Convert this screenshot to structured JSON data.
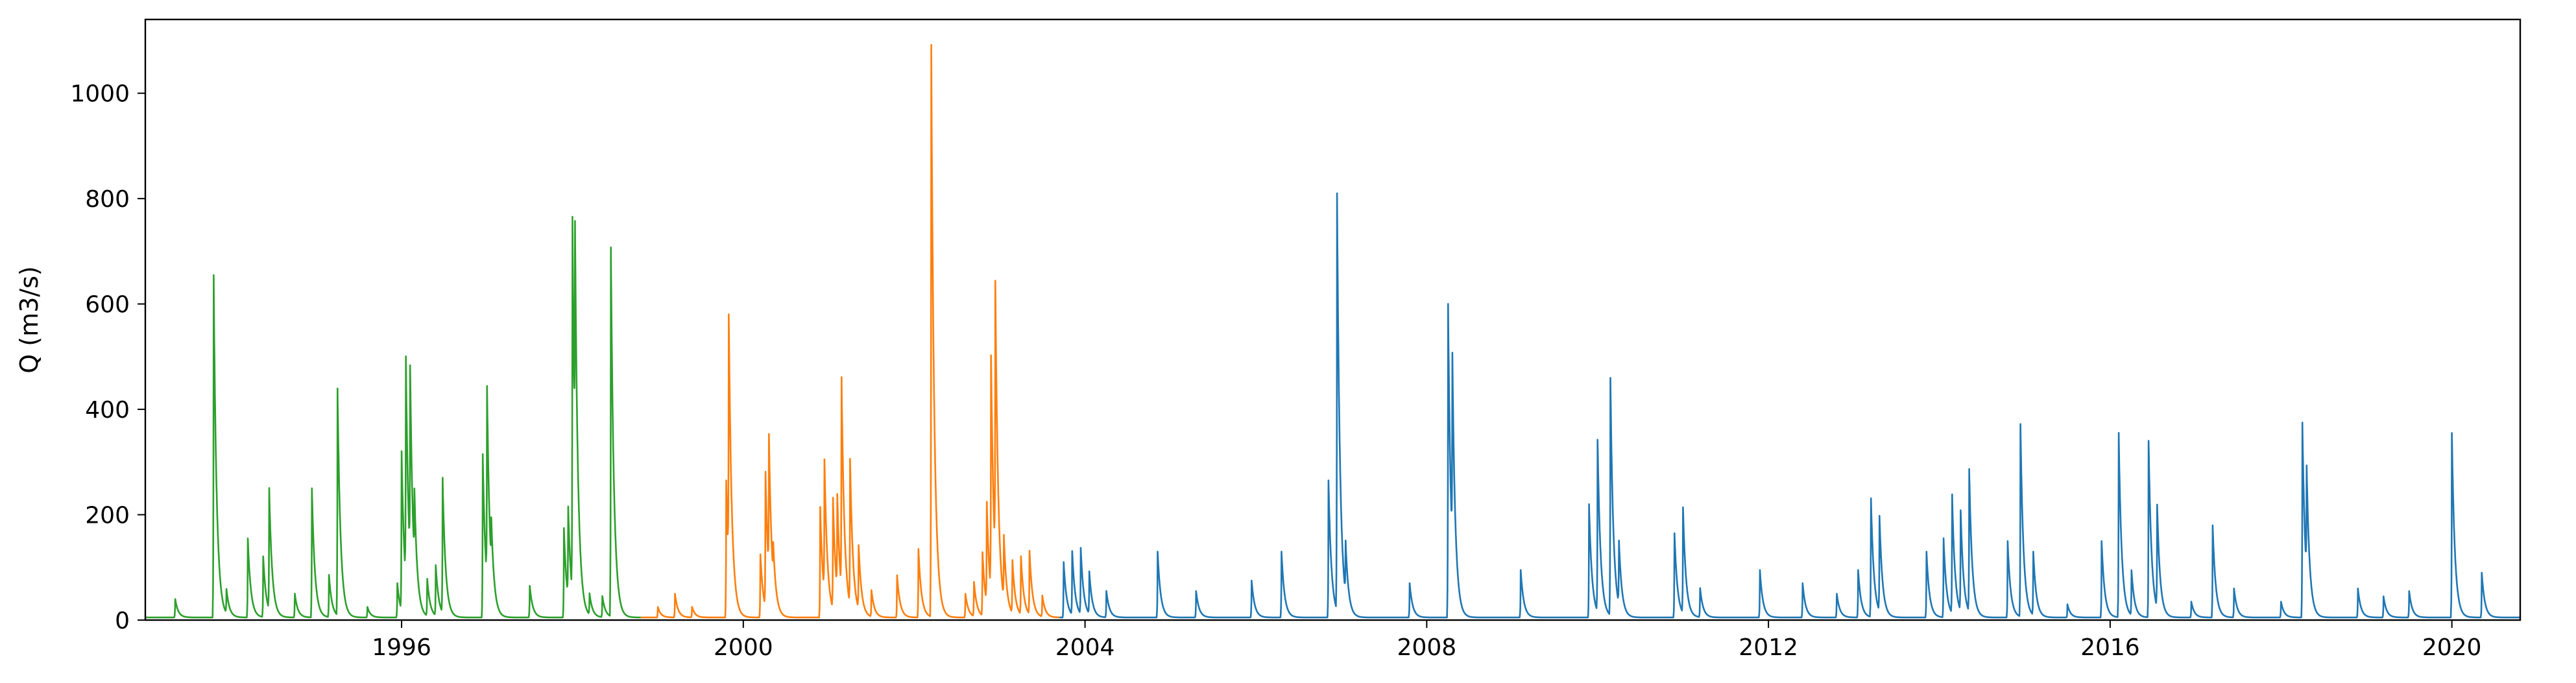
{
  "chart_data": {
    "type": "line",
    "title": "",
    "xlabel": "",
    "ylabel": "Q (m3/s)",
    "xlim": [
      1993.0,
      2020.8
    ],
    "ylim": [
      0,
      1140
    ],
    "x_ticks": [
      1996,
      2000,
      2004,
      2008,
      2012,
      2016,
      2020
    ],
    "x_tick_labels": [
      "1996",
      "2000",
      "2004",
      "2008",
      "2012",
      "2016",
      "2020"
    ],
    "y_ticks": [
      0,
      200,
      400,
      600,
      800,
      1000
    ],
    "y_tick_labels": [
      "0",
      "200",
      "400",
      "600",
      "800",
      "1000"
    ],
    "grid": false,
    "legend": "none",
    "baseflow": 5,
    "series": [
      {
        "color": "#2ca02c",
        "x_range": [
          1993.0,
          1998.8
        ],
        "peaks": [
          [
            1993.35,
            35
          ],
          [
            1993.8,
            650
          ],
          [
            1993.95,
            45
          ],
          [
            1994.2,
            150
          ],
          [
            1994.38,
            115
          ],
          [
            1994.45,
            230
          ],
          [
            1994.75,
            45
          ],
          [
            1994.95,
            245
          ],
          [
            1995.15,
            80
          ],
          [
            1995.25,
            430
          ],
          [
            1995.6,
            20
          ],
          [
            1995.95,
            65
          ],
          [
            1996.0,
            300
          ],
          [
            1996.05,
            420
          ],
          [
            1996.1,
            360
          ],
          [
            1996.15,
            130
          ],
          [
            1996.3,
            70
          ],
          [
            1996.4,
            95
          ],
          [
            1996.48,
            255
          ],
          [
            1996.95,
            310
          ],
          [
            1997.0,
            365
          ],
          [
            1997.05,
            85
          ],
          [
            1997.5,
            60
          ],
          [
            1997.9,
            170
          ],
          [
            1997.95,
            170
          ],
          [
            1998.0,
            710
          ],
          [
            1998.03,
            430
          ],
          [
            1998.2,
            40
          ],
          [
            1998.35,
            40
          ],
          [
            1998.45,
            700
          ]
        ]
      },
      {
        "color": "#ff7f0e",
        "x_range": [
          1998.8,
          2003.7
        ],
        "peaks": [
          [
            1999.0,
            20
          ],
          [
            1999.2,
            45
          ],
          [
            1999.4,
            20
          ],
          [
            1999.8,
            260
          ],
          [
            1999.83,
            465
          ],
          [
            2000.2,
            120
          ],
          [
            2000.26,
            255
          ],
          [
            2000.3,
            260
          ],
          [
            2000.35,
            60
          ],
          [
            2000.9,
            210
          ],
          [
            2000.95,
            250
          ],
          [
            2001.05,
            210
          ],
          [
            2001.1,
            180
          ],
          [
            2001.15,
            400
          ],
          [
            2001.25,
            275
          ],
          [
            2001.35,
            120
          ],
          [
            2001.5,
            50
          ],
          [
            2001.8,
            80
          ],
          [
            2002.05,
            130
          ],
          [
            2002.2,
            1085
          ],
          [
            2002.6,
            45
          ],
          [
            2002.7,
            65
          ],
          [
            2002.8,
            120
          ],
          [
            2002.85,
            190
          ],
          [
            2002.9,
            445
          ],
          [
            2002.95,
            520
          ],
          [
            2003.05,
            120
          ],
          [
            2003.15,
            100
          ],
          [
            2003.25,
            110
          ],
          [
            2003.35,
            120
          ],
          [
            2003.5,
            40
          ]
        ]
      },
      {
        "color": "#1f77b4",
        "x_range": [
          2003.7,
          2020.8
        ],
        "peaks": [
          [
            2003.75,
            105
          ],
          [
            2003.85,
            120
          ],
          [
            2003.95,
            125
          ],
          [
            2004.05,
            80
          ],
          [
            2004.25,
            50
          ],
          [
            2004.85,
            125
          ],
          [
            2005.3,
            50
          ],
          [
            2005.95,
            70
          ],
          [
            2006.3,
            125
          ],
          [
            2006.85,
            260
          ],
          [
            2006.95,
            790
          ],
          [
            2007.05,
            100
          ],
          [
            2007.8,
            65
          ],
          [
            2008.25,
            595
          ],
          [
            2008.3,
            360
          ],
          [
            2009.1,
            90
          ],
          [
            2009.9,
            215
          ],
          [
            2010.0,
            325
          ],
          [
            2010.15,
            450
          ],
          [
            2010.25,
            120
          ],
          [
            2010.9,
            160
          ],
          [
            2011.0,
            200
          ],
          [
            2011.2,
            55
          ],
          [
            2011.9,
            90
          ],
          [
            2012.4,
            65
          ],
          [
            2012.8,
            45
          ],
          [
            2013.05,
            90
          ],
          [
            2013.2,
            225
          ],
          [
            2013.3,
            180
          ],
          [
            2013.85,
            125
          ],
          [
            2014.05,
            150
          ],
          [
            2014.15,
            225
          ],
          [
            2014.25,
            190
          ],
          [
            2014.35,
            270
          ],
          [
            2014.8,
            145
          ],
          [
            2014.95,
            365
          ],
          [
            2015.1,
            120
          ],
          [
            2015.5,
            25
          ],
          [
            2015.9,
            145
          ],
          [
            2016.1,
            350
          ],
          [
            2016.25,
            85
          ],
          [
            2016.45,
            335
          ],
          [
            2016.55,
            195
          ],
          [
            2016.95,
            30
          ],
          [
            2017.2,
            175
          ],
          [
            2017.45,
            55
          ],
          [
            2018.0,
            30
          ],
          [
            2018.25,
            370
          ],
          [
            2018.3,
            200
          ],
          [
            2018.9,
            55
          ],
          [
            2019.2,
            40
          ],
          [
            2019.5,
            50
          ],
          [
            2020.0,
            350
          ],
          [
            2020.35,
            85
          ]
        ]
      }
    ]
  }
}
